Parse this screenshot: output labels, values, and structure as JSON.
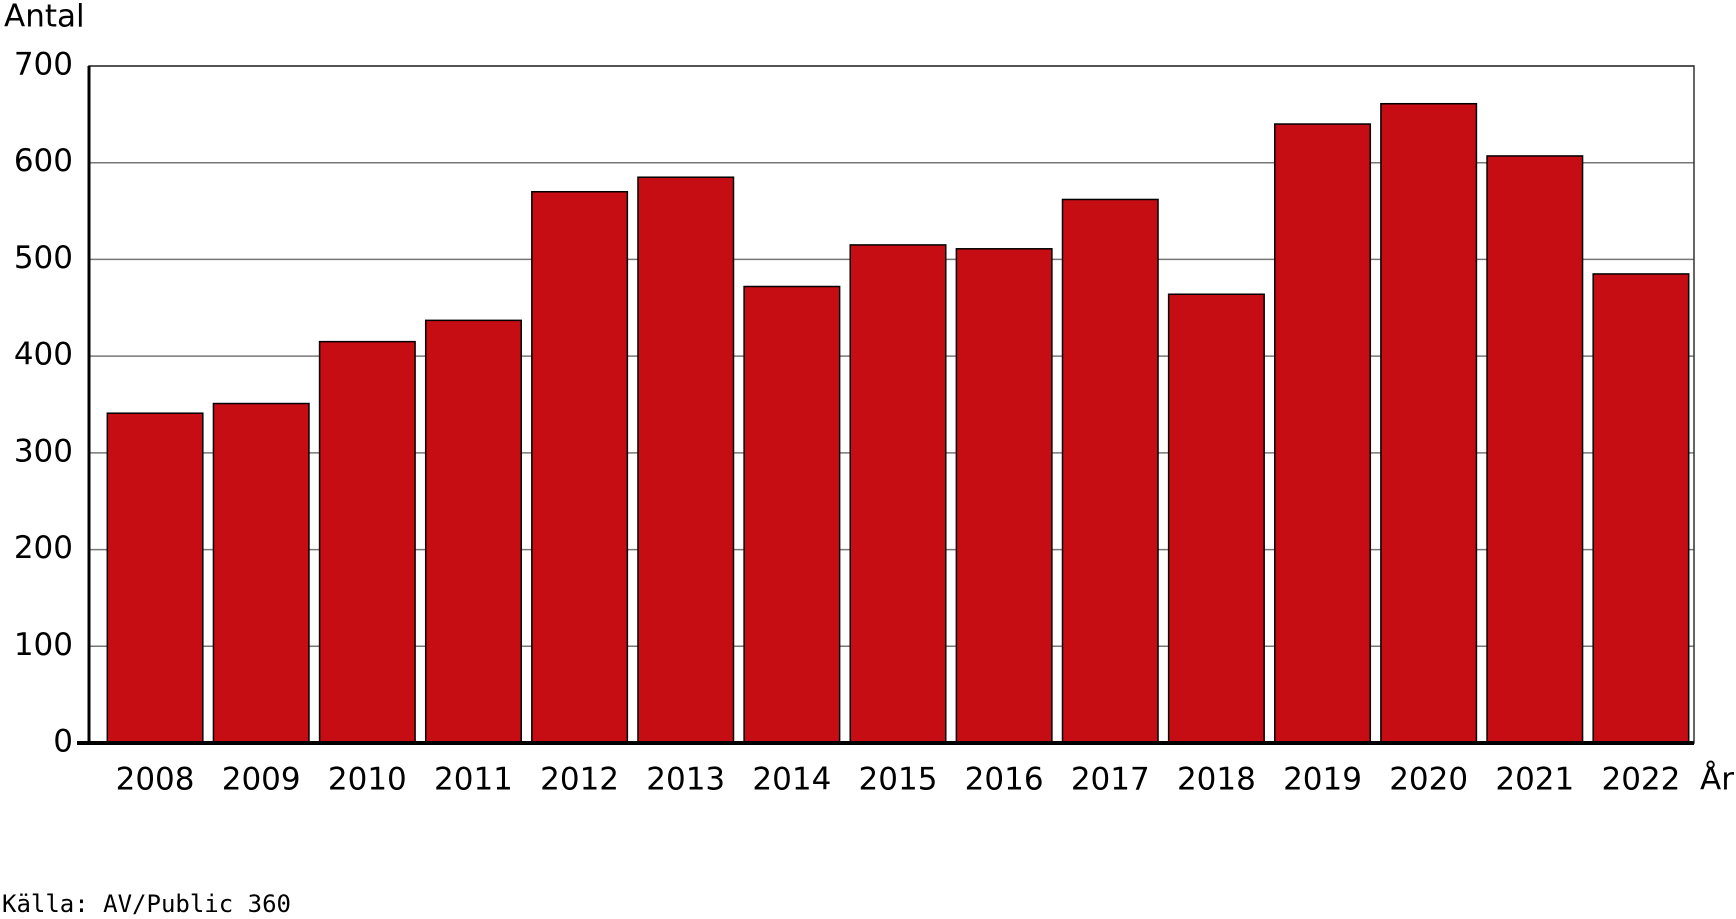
{
  "chart_data": {
    "type": "bar",
    "y_label": "Antal",
    "x_label": "År",
    "source": "Källa: AV/Public 360",
    "categories": [
      "2008",
      "2009",
      "2010",
      "2011",
      "2012",
      "2013",
      "2014",
      "2015",
      "2016",
      "2017",
      "2018",
      "2019",
      "2020",
      "2021",
      "2022"
    ],
    "values": [
      341,
      351,
      415,
      437,
      570,
      585,
      472,
      515,
      511,
      562,
      464,
      640,
      661,
      607,
      485
    ],
    "color": "#c70d14",
    "ylim": [
      0,
      700
    ],
    "yticks": [
      0,
      100,
      200,
      300,
      400,
      500,
      600,
      700
    ],
    "grid": true
  }
}
